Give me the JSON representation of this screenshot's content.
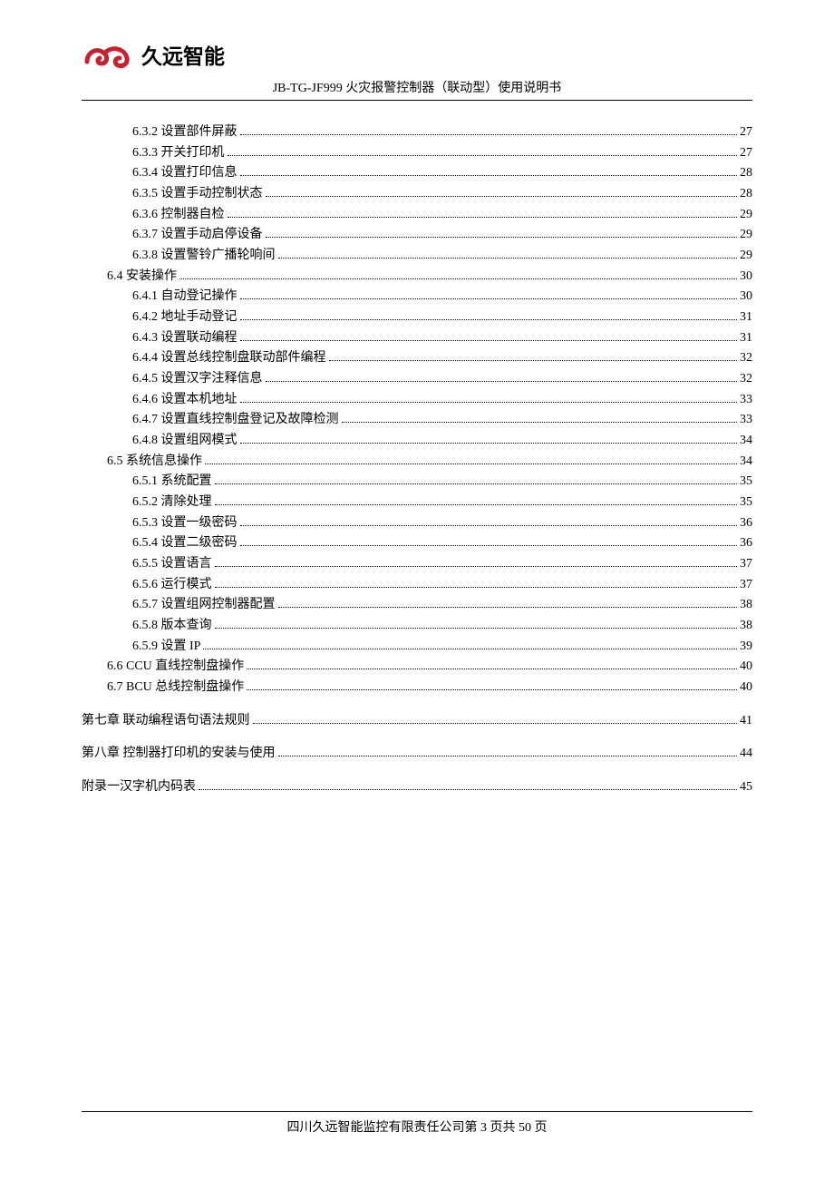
{
  "header": {
    "company_name": "久远智能",
    "doc_title": "JB-TG-JF999 火灾报警控制器（联动型）使用说明书"
  },
  "logo": {
    "stroke_color": "#c8202f",
    "stroke_width": 5
  },
  "toc": {
    "items": [
      {
        "indent": 2,
        "label": "6.3.2  设置部件屏蔽",
        "page": "27",
        "chapter": false
      },
      {
        "indent": 2,
        "label": "6.3.3  开关打印机",
        "page": "27",
        "chapter": false
      },
      {
        "indent": 2,
        "label": "6.3.4  设置打印信息",
        "page": "28",
        "chapter": false
      },
      {
        "indent": 2,
        "label": "6.3.5  设置手动控制状态",
        "page": "28",
        "chapter": false
      },
      {
        "indent": 2,
        "label": "6.3.6  控制器自检",
        "page": "29",
        "chapter": false
      },
      {
        "indent": 2,
        "label": "6.3.7  设置手动启停设备",
        "page": "29",
        "chapter": false
      },
      {
        "indent": 2,
        "label": "6.3.8 设置警铃广播轮响间",
        "page": "29",
        "chapter": false
      },
      {
        "indent": 1,
        "label": "6.4  安装操作",
        "page": "30",
        "chapter": false
      },
      {
        "indent": 2,
        "label": "6.4.1  自动登记操作",
        "page": "30",
        "chapter": false
      },
      {
        "indent": 2,
        "label": "6.4.2  地址手动登记",
        "page": "31",
        "chapter": false
      },
      {
        "indent": 2,
        "label": "6.4.3  设置联动编程",
        "page": "31",
        "chapter": false
      },
      {
        "indent": 2,
        "label": "6.4.4  设置总线控制盘联动部件编程",
        "page": "32",
        "chapter": false
      },
      {
        "indent": 2,
        "label": "6.4.5  设置汉字注释信息",
        "page": "32",
        "chapter": false
      },
      {
        "indent": 2,
        "label": "6.4.6  设置本机地址",
        "page": "33",
        "chapter": false
      },
      {
        "indent": 2,
        "label": "6.4.7  设置直线控制盘登记及故障检测",
        "page": "33",
        "chapter": false
      },
      {
        "indent": 2,
        "label": "6.4.8  设置组网模式",
        "page": "34",
        "chapter": false
      },
      {
        "indent": 1,
        "label": "6.5  系统信息操作",
        "page": "34",
        "chapter": false
      },
      {
        "indent": 2,
        "label": "6.5.1  系统配置",
        "page": "35",
        "chapter": false
      },
      {
        "indent": 2,
        "label": "6.5.2  清除处理",
        "page": "35",
        "chapter": false
      },
      {
        "indent": 2,
        "label": "6.5.3  设置一级密码",
        "page": "36",
        "chapter": false
      },
      {
        "indent": 2,
        "label": "6.5.4  设置二级密码",
        "page": "36",
        "chapter": false
      },
      {
        "indent": 2,
        "label": "6.5.5  设置语言",
        "page": "37",
        "chapter": false
      },
      {
        "indent": 2,
        "label": "6.5.6  运行模式",
        "page": "37",
        "chapter": false
      },
      {
        "indent": 2,
        "label": "6.5.7  设置组网控制器配置",
        "page": "38",
        "chapter": false
      },
      {
        "indent": 2,
        "label": "6.5.8  版本查询",
        "page": "38",
        "chapter": false
      },
      {
        "indent": 2,
        "label": "6.5.9 设置 IP",
        "page": "39",
        "chapter": false
      },
      {
        "indent": 1,
        "label": "6.6   CCU 直线控制盘操作",
        "page": "40",
        "chapter": false
      },
      {
        "indent": 1,
        "label": "6.7   BCU 总线控制盘操作",
        "page": "40",
        "chapter": false
      },
      {
        "indent": 0,
        "label": "第七章      联动编程语句语法规则",
        "page": "41",
        "chapter": true
      },
      {
        "indent": 0,
        "label": "第八章      控制器打印机的安装与使用",
        "page": "44",
        "chapter": true
      },
      {
        "indent": 0,
        "label": "附录一汉字机内码表",
        "page": "45",
        "chapter": true
      }
    ]
  },
  "footer": {
    "company": "四川久远智能监控有限责任公司",
    "page_prefix": "第 ",
    "page_current": "3",
    "page_middle": " 页共 ",
    "page_total": "50",
    "page_suffix": " 页"
  }
}
